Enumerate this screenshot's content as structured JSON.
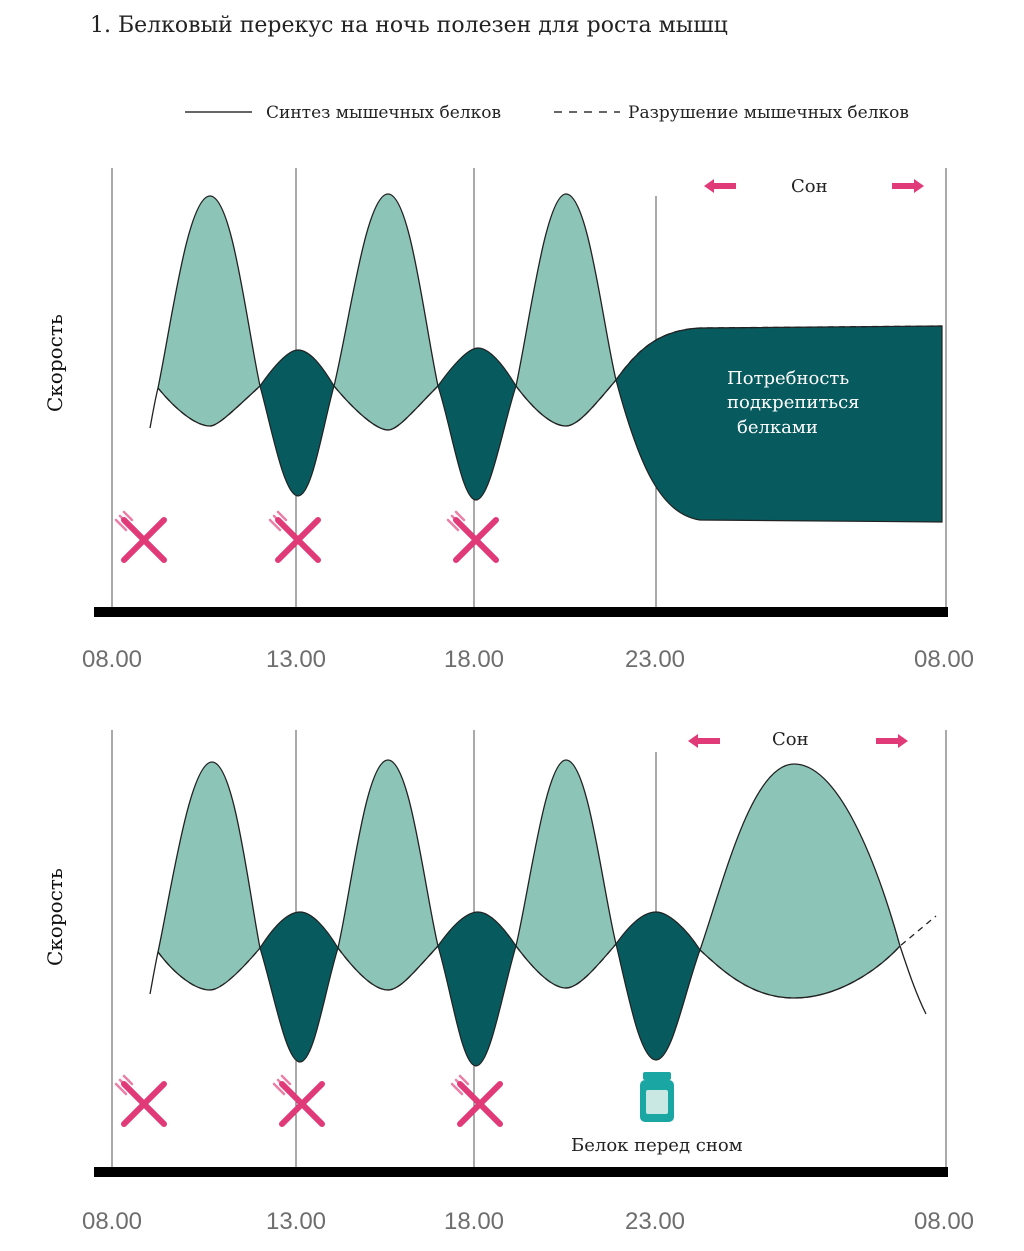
{
  "title": "1. Белковый перекус на ночь полезен для роста мышц",
  "legend": {
    "synthesis": "Синтез мышечных белков",
    "breakdown": "Разрушение мышечных белков"
  },
  "colors": {
    "light": "#8cc5b7",
    "dark": "#075a5e",
    "accent": "#e03a78",
    "jar": "#1aa7a3",
    "axis": "#000000",
    "grid": "#444444"
  },
  "time_labels": [
    "08.00",
    "13.00",
    "18.00",
    "23.00",
    "08.00"
  ],
  "top": {
    "ylabel": "Скорость",
    "sleep_label": "Сон",
    "inner_text": [
      "Потребность",
      "подкрепиться",
      "белками"
    ],
    "meal_icons": [
      "fork-cross-icon",
      "fork-cross-icon",
      "fork-cross-icon"
    ]
  },
  "bottom": {
    "ylabel": "Скорость",
    "sleep_label": "Сон",
    "snack_label": "Белок перед сном",
    "meal_icons": [
      "fork-cross-icon",
      "fork-cross-icon",
      "fork-cross-icon"
    ],
    "snack_icon": "protein-jar-icon"
  }
}
